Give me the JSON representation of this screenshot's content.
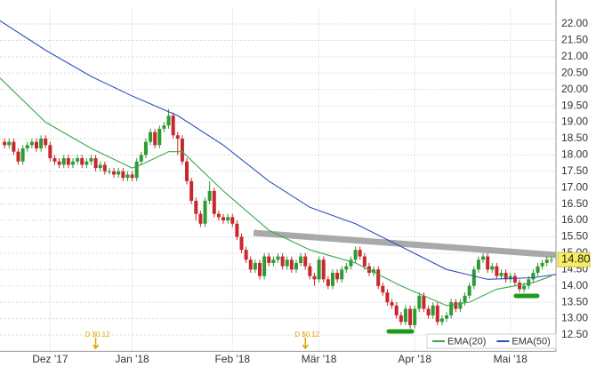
{
  "chart_data": {
    "type": "candlestick",
    "xlim": [
      0,
      122
    ],
    "xticks": [
      {
        "value": 11,
        "label": "Dez '17"
      },
      {
        "value": 29,
        "label": "Jan '18"
      },
      {
        "value": 51,
        "label": "Feb '18"
      },
      {
        "value": 70,
        "label": "Mär '18"
      },
      {
        "value": 91,
        "label": "Apr '18"
      },
      {
        "value": 112,
        "label": "Mai '18"
      }
    ],
    "ylim": [
      12,
      22.5
    ],
    "yticks": [
      {
        "value": 12.5,
        "label": "12.50"
      },
      {
        "value": 13,
        "label": "13.00"
      },
      {
        "value": 13.5,
        "label": "13.50"
      },
      {
        "value": 14,
        "label": "14.00"
      },
      {
        "value": 14.5,
        "label": "14.50"
      },
      {
        "value": 15,
        "label": "15.00"
      },
      {
        "value": 15.5,
        "label": "15.50"
      },
      {
        "value": 16,
        "label": "16.00"
      },
      {
        "value": 16.5,
        "label": "16.50"
      },
      {
        "value": 17,
        "label": "17.00"
      },
      {
        "value": 17.5,
        "label": "17.50"
      },
      {
        "value": 18,
        "label": "18.00"
      },
      {
        "value": 18.5,
        "label": "18.50"
      },
      {
        "value": 19,
        "label": "19.00"
      },
      {
        "value": 19.5,
        "label": "19.50"
      },
      {
        "value": 20,
        "label": "20.00"
      },
      {
        "value": 20.5,
        "label": "20.50"
      },
      {
        "value": 21,
        "label": "21.00"
      },
      {
        "value": 21.5,
        "label": "21.50"
      },
      {
        "value": 22,
        "label": "22.00"
      }
    ],
    "grid": true,
    "up_color": "#2f9a32",
    "down_color": "#c8282d",
    "candles": {
      "x": [
        1,
        2,
        3,
        4,
        5,
        6,
        7,
        8,
        9,
        10,
        11,
        12,
        13,
        14,
        15,
        16,
        17,
        18,
        19,
        20,
        21,
        22,
        23,
        24,
        25,
        26,
        27,
        28,
        29,
        30,
        31,
        32,
        33,
        34,
        35,
        36,
        37,
        38,
        39,
        40,
        41,
        42,
        43,
        44,
        45,
        46,
        47,
        48,
        49,
        50,
        51,
        52,
        53,
        54,
        55,
        56,
        57,
        58,
        59,
        60,
        61,
        62,
        63,
        64,
        65,
        66,
        67,
        68,
        69,
        70,
        71,
        72,
        73,
        74,
        75,
        76,
        77,
        78,
        79,
        80,
        81,
        82,
        83,
        84,
        85,
        86,
        87,
        88,
        89,
        90,
        91,
        92,
        93,
        94,
        95,
        96,
        97,
        98,
        99,
        100,
        101,
        102,
        103,
        104,
        105,
        106,
        107,
        108,
        109,
        110,
        111,
        112,
        113,
        114,
        115,
        116,
        117,
        118,
        119,
        120,
        121
      ],
      "open": [
        18.4,
        18.3,
        18.4,
        18.1,
        17.8,
        18.2,
        18.3,
        18.4,
        18.2,
        18.5,
        18.3,
        17.9,
        17.8,
        17.7,
        17.9,
        17.7,
        17.8,
        17.9,
        17.7,
        17.8,
        17.9,
        17.6,
        17.7,
        17.5,
        17.5,
        17.4,
        17.5,
        17.3,
        17.4,
        17.3,
        17.8,
        18.0,
        18.4,
        18.7,
        18.3,
        18.8,
        18.9,
        19.2,
        18.6,
        18.5,
        17.8,
        17.2,
        16.6,
        16.2,
        15.9,
        16.6,
        16.9,
        16.2,
        16.1,
        16.0,
        16.1,
        15.9,
        15.5,
        15.1,
        14.8,
        14.5,
        14.7,
        14.3,
        14.9,
        14.7,
        14.8,
        14.9,
        14.6,
        14.8,
        14.5,
        14.7,
        14.9,
        14.6,
        14.3,
        14.2,
        14.8,
        14.2,
        14.0,
        14.4,
        14.2,
        14.5,
        14.6,
        14.8,
        15.1,
        14.9,
        14.6,
        14.4,
        14.5,
        14.0,
        13.8,
        13.5,
        13.4,
        13.1,
        12.9,
        13.3,
        12.8,
        13.3,
        13.7,
        13.3,
        13.1,
        13.4,
        12.9,
        13.0,
        13.1,
        13.5,
        13.3,
        13.5,
        13.7,
        14.0,
        14.5,
        14.8,
        14.9,
        14.5,
        14.6,
        14.3,
        14.4,
        14.2,
        14.3,
        14.1,
        13.9,
        14.0,
        14.2,
        14.4,
        14.6,
        14.7,
        14.8
      ],
      "high": [
        18.5,
        18.5,
        18.5,
        18.2,
        18.3,
        18.4,
        18.5,
        18.5,
        18.6,
        18.6,
        18.4,
        18.0,
        17.9,
        18.0,
        18.0,
        17.9,
        18.0,
        18.0,
        17.9,
        18.0,
        18.0,
        17.8,
        17.8,
        17.6,
        17.6,
        17.6,
        17.6,
        17.5,
        17.5,
        17.9,
        18.1,
        18.5,
        18.8,
        18.8,
        18.9,
        19.0,
        19.4,
        19.3,
        18.7,
        18.6,
        17.9,
        17.3,
        16.7,
        16.3,
        16.7,
        17.2,
        17.0,
        16.3,
        16.2,
        16.2,
        16.2,
        16.0,
        15.6,
        15.2,
        14.9,
        14.8,
        14.8,
        15.0,
        15.0,
        14.9,
        15.0,
        15.0,
        14.9,
        14.9,
        14.8,
        15.0,
        15.0,
        14.7,
        14.4,
        14.9,
        14.9,
        14.3,
        14.5,
        14.5,
        14.6,
        14.7,
        14.9,
        15.2,
        15.2,
        15.0,
        14.7,
        14.6,
        14.6,
        14.1,
        13.9,
        13.6,
        13.5,
        13.2,
        13.4,
        13.4,
        13.4,
        13.8,
        13.8,
        13.4,
        13.5,
        13.5,
        13.1,
        13.2,
        13.6,
        13.6,
        13.6,
        13.8,
        14.1,
        14.6,
        14.9,
        15.0,
        15.0,
        14.7,
        14.7,
        14.5,
        14.5,
        14.4,
        14.4,
        14.2,
        14.1,
        14.3,
        14.5,
        14.7,
        14.8,
        14.9,
        14.9
      ],
      "low": [
        18.2,
        18.2,
        18.0,
        17.7,
        17.7,
        18.1,
        18.2,
        18.1,
        18.1,
        18.2,
        17.8,
        17.7,
        17.6,
        17.6,
        17.6,
        17.6,
        17.7,
        17.6,
        17.6,
        17.7,
        17.5,
        17.5,
        17.4,
        17.4,
        17.3,
        17.3,
        17.2,
        17.2,
        17.2,
        17.2,
        17.7,
        17.9,
        18.3,
        18.2,
        18.2,
        18.7,
        18.8,
        18.5,
        18.0,
        17.7,
        17.1,
        16.5,
        16.0,
        15.8,
        15.8,
        16.5,
        16.1,
        16.0,
        15.9,
        15.9,
        15.8,
        15.4,
        15.0,
        14.7,
        14.4,
        14.4,
        14.2,
        14.2,
        14.6,
        14.6,
        14.7,
        14.5,
        14.5,
        14.4,
        14.4,
        14.6,
        14.5,
        14.2,
        14.0,
        14.1,
        14.1,
        13.9,
        13.9,
        14.1,
        14.1,
        14.4,
        14.5,
        14.7,
        14.8,
        14.5,
        14.3,
        14.3,
        13.9,
        13.7,
        13.4,
        13.3,
        13.0,
        12.8,
        12.8,
        12.7,
        12.7,
        13.2,
        13.2,
        13.0,
        13.0,
        12.8,
        12.8,
        12.9,
        13.0,
        13.2,
        13.2,
        13.4,
        13.6,
        13.9,
        14.4,
        14.7,
        14.4,
        14.4,
        14.2,
        14.2,
        14.1,
        14.1,
        14.0,
        13.8,
        13.8,
        13.9,
        14.1,
        14.3,
        14.5,
        14.6,
        14.7
      ],
      "close": [
        18.3,
        18.4,
        18.1,
        17.8,
        18.2,
        18.3,
        18.4,
        18.2,
        18.5,
        18.3,
        17.9,
        17.8,
        17.7,
        17.9,
        17.7,
        17.8,
        17.9,
        17.7,
        17.8,
        17.9,
        17.6,
        17.7,
        17.5,
        17.5,
        17.4,
        17.5,
        17.3,
        17.4,
        17.3,
        17.8,
        18.0,
        18.4,
        18.7,
        18.3,
        18.8,
        18.9,
        19.2,
        18.6,
        18.5,
        17.8,
        17.2,
        16.6,
        16.2,
        15.9,
        16.6,
        16.9,
        16.2,
        16.1,
        16.0,
        16.1,
        15.9,
        15.5,
        15.1,
        14.8,
        14.5,
        14.7,
        14.3,
        14.9,
        14.7,
        14.8,
        14.9,
        14.6,
        14.8,
        14.5,
        14.7,
        14.9,
        14.6,
        14.3,
        14.2,
        14.8,
        14.2,
        14.0,
        14.4,
        14.2,
        14.5,
        14.6,
        14.8,
        15.1,
        14.9,
        14.6,
        14.4,
        14.5,
        14.0,
        13.8,
        13.5,
        13.4,
        13.1,
        12.9,
        13.3,
        12.8,
        13.3,
        13.7,
        13.3,
        13.1,
        13.4,
        12.9,
        13.0,
        13.1,
        13.5,
        13.3,
        13.5,
        13.7,
        14.0,
        14.5,
        14.8,
        14.9,
        14.5,
        14.6,
        14.3,
        14.4,
        14.2,
        14.3,
        14.1,
        13.9,
        14.0,
        14.2,
        14.4,
        14.6,
        14.7,
        14.8,
        14.8
      ]
    },
    "series": [
      {
        "name": "EMA(20)",
        "color": "#3aa84a",
        "x": [
          0,
          10,
          20,
          29,
          31,
          37,
          40,
          49,
          59,
          68,
          78,
          88,
          98,
          103,
          109,
          117,
          121
        ],
        "values": [
          20.35,
          19.0,
          18.2,
          17.6,
          17.7,
          18.1,
          18.1,
          16.9,
          15.7,
          15.1,
          14.7,
          14.0,
          13.4,
          13.5,
          13.9,
          14.1,
          14.3
        ]
      },
      {
        "name": "EMA(50)",
        "color": "#2b4fc0",
        "x": [
          0,
          10,
          20,
          29,
          39,
          49,
          59,
          68,
          78,
          88,
          98,
          107,
          117,
          122
        ],
        "values": [
          22.1,
          21.2,
          20.4,
          19.8,
          19.2,
          18.3,
          17.2,
          16.4,
          15.9,
          15.2,
          14.5,
          14.2,
          14.25,
          14.35
        ]
      }
    ],
    "last_price": {
      "value": 14.8,
      "label": "14.80"
    },
    "dividends": [
      {
        "x": 21,
        "label": "D $0.12"
      },
      {
        "x": 67,
        "label": "D $0.12"
      }
    ]
  }
}
